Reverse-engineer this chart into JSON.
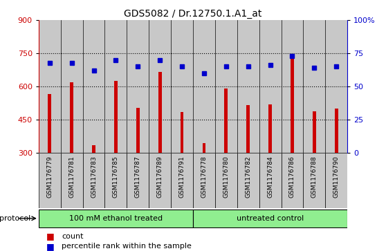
{
  "title": "GDS5082 / Dr.12750.1.A1_at",
  "samples": [
    "GSM1176779",
    "GSM1176781",
    "GSM1176783",
    "GSM1176785",
    "GSM1176787",
    "GSM1176789",
    "GSM1176791",
    "GSM1176778",
    "GSM1176780",
    "GSM1176782",
    "GSM1176784",
    "GSM1176786",
    "GSM1176788",
    "GSM1176790"
  ],
  "counts": [
    565,
    620,
    335,
    625,
    505,
    665,
    485,
    345,
    590,
    515,
    520,
    735,
    490,
    500
  ],
  "percentiles": [
    68,
    68,
    62,
    70,
    65,
    70,
    65,
    60,
    65,
    65,
    66,
    73,
    64,
    65
  ],
  "group1_label": "100 mM ethanol treated",
  "group2_label": "untreated control",
  "group1_count": 7,
  "group2_count": 7,
  "ylim_left": [
    300,
    900
  ],
  "ylim_right": [
    0,
    100
  ],
  "yticks_left": [
    300,
    450,
    600,
    750,
    900
  ],
  "yticks_right": [
    0,
    25,
    50,
    75,
    100
  ],
  "bar_color": "#CC0000",
  "dot_color": "#0000CC",
  "group_color": "#90EE90",
  "col_bg_color": "#C8C8C8",
  "plot_bg_color": "#FFFFFF",
  "protocol_label": "protocol",
  "legend_count_label": "count",
  "legend_pct_label": "percentile rank within the sample",
  "gridline_color": "#000000",
  "gridline_ticks": [
    450,
    600,
    750
  ]
}
